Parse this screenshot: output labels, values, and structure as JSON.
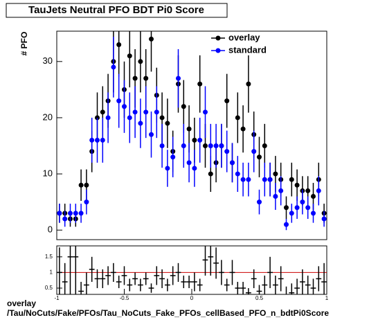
{
  "chart_data": [
    {
      "type": "scatter",
      "title": "TauJets Neutral PFO BDT Pi0 Score",
      "ylabel": "# PFO",
      "x": [
        -0.98,
        -0.94,
        -0.9,
        -0.86,
        -0.82,
        -0.78,
        -0.74,
        -0.7,
        -0.66,
        -0.62,
        -0.58,
        -0.54,
        -0.5,
        -0.46,
        -0.42,
        -0.38,
        -0.34,
        -0.3,
        -0.26,
        -0.22,
        -0.18,
        -0.14,
        -0.1,
        -0.06,
        -0.02,
        0.02,
        0.06,
        0.1,
        0.14,
        0.18,
        0.22,
        0.26,
        0.3,
        0.34,
        0.38,
        0.42,
        0.46,
        0.5,
        0.54,
        0.58,
        0.62,
        0.66,
        0.7,
        0.74,
        0.78,
        0.82,
        0.86,
        0.9,
        0.94,
        0.98
      ],
      "series": [
        {
          "name": "overlay",
          "color": "#000000",
          "values": [
            3,
            3,
            2,
            2,
            8,
            8,
            14,
            20,
            21,
            23,
            30,
            33,
            25,
            31,
            27,
            30,
            27,
            34,
            24,
            20,
            19,
            14,
            26,
            22,
            18,
            16,
            26,
            15,
            10,
            12,
            15,
            23,
            12,
            20,
            18,
            26,
            17,
            13,
            15,
            9,
            10,
            9,
            4,
            9,
            8,
            7,
            7,
            6,
            9,
            3
          ],
          "errors": [
            1.7,
            1.7,
            1.4,
            1.4,
            2.8,
            2.8,
            3.7,
            4.5,
            4.6,
            4.8,
            5.5,
            5.7,
            5,
            5.6,
            5.2,
            5.5,
            5.2,
            5.8,
            4.9,
            4.5,
            4.4,
            3.7,
            5.1,
            4.7,
            4.2,
            4,
            5.1,
            3.9,
            3.2,
            3.5,
            3.9,
            4.8,
            3.5,
            4.5,
            4.2,
            5.1,
            4.1,
            3.6,
            3.9,
            3,
            3.2,
            3,
            2,
            3,
            2.8,
            2.6,
            2.6,
            2.4,
            3,
            1.7
          ]
        },
        {
          "name": "standard",
          "color": "#0000ff",
          "values": [
            3,
            2,
            3,
            3,
            3,
            5,
            16,
            16,
            16,
            20,
            29,
            23,
            22,
            20,
            21,
            19,
            21,
            17,
            21,
            15,
            11,
            13,
            27,
            15,
            12,
            11,
            16,
            21,
            15,
            15,
            15,
            14,
            12,
            10,
            9,
            9,
            14,
            5,
            9,
            9,
            6,
            7,
            1,
            3,
            4,
            5,
            4,
            3,
            7,
            2
          ],
          "errors": [
            1.7,
            1.4,
            1.7,
            1.7,
            1.7,
            2.2,
            4,
            4,
            4,
            4.5,
            5.4,
            4.8,
            4.7,
            4.5,
            4.6,
            4.4,
            4.6,
            4.1,
            4.6,
            3.9,
            3.3,
            3.6,
            5.2,
            3.9,
            3.5,
            3.3,
            4,
            4.6,
            3.9,
            3.9,
            3.9,
            3.7,
            3.5,
            3.2,
            3,
            3,
            3.7,
            2.2,
            3,
            3,
            2.4,
            2.6,
            1,
            1.7,
            2,
            2.2,
            2,
            1.7,
            2.6,
            1.4
          ]
        }
      ],
      "xlim": [
        -1,
        1
      ],
      "ylim": [
        -1.7,
        35.4
      ],
      "yticks": [
        0,
        10,
        20,
        30
      ],
      "legend": "upper right"
    },
    {
      "type": "ratio",
      "x": [
        -0.98,
        -0.94,
        -0.9,
        -0.86,
        -0.82,
        -0.78,
        -0.74,
        -0.7,
        -0.66,
        -0.62,
        -0.58,
        -0.54,
        -0.5,
        -0.46,
        -0.42,
        -0.38,
        -0.34,
        -0.3,
        -0.26,
        -0.22,
        -0.18,
        -0.14,
        -0.1,
        -0.06,
        -0.02,
        0.02,
        0.06,
        0.1,
        0.14,
        0.18,
        0.22,
        0.26,
        0.3,
        0.34,
        0.38,
        0.42,
        0.46,
        0.5,
        0.54,
        0.58,
        0.62,
        0.66,
        0.7,
        0.74,
        0.78,
        0.82,
        0.86,
        0.9,
        0.94,
        0.98
      ],
      "values": [
        1,
        0.7,
        1.5,
        1.5,
        0.4,
        0.6,
        1.1,
        0.8,
        0.8,
        0.9,
        1,
        0.7,
        0.9,
        0.6,
        0.8,
        0.6,
        0.8,
        0.5,
        0.9,
        0.8,
        0.6,
        0.9,
        1,
        0.7,
        0.7,
        0.7,
        0.6,
        1.4,
        1.5,
        1.3,
        1,
        0.6,
        1,
        0.5,
        0.5,
        0.35,
        0.8,
        0.4,
        0.6,
        1,
        0.6,
        0.8,
        0.25,
        0.35,
        0.5,
        0.7,
        0.6,
        0.5,
        0.8,
        0.7
      ],
      "errors": [
        0.8,
        0.6,
        1.2,
        1.2,
        0.3,
        0.4,
        0.4,
        0.3,
        0.3,
        0.3,
        0.3,
        0.2,
        0.3,
        0.2,
        0.2,
        0.2,
        0.2,
        0.15,
        0.3,
        0.3,
        0.2,
        0.3,
        0.3,
        0.2,
        0.2,
        0.3,
        0.2,
        0.5,
        0.6,
        0.5,
        0.4,
        0.2,
        0.4,
        0.2,
        0.2,
        0.15,
        0.3,
        0.2,
        0.3,
        0.5,
        0.3,
        0.4,
        0.3,
        0.3,
        0.3,
        0.4,
        0.3,
        0.3,
        0.4,
        0.6
      ],
      "color": "#000000",
      "reference": 1,
      "reference_color": "#cc0000",
      "xlim": [
        -1,
        1
      ],
      "ylim": [
        0.3,
        1.85
      ],
      "yticks": [
        0.5,
        1,
        1.5
      ],
      "xticks": [
        -1,
        -0.5,
        0,
        0.5,
        1
      ]
    }
  ],
  "footer": {
    "line1": "overlay",
    "line2": "/Tau/NoCuts/Fake/PFOs/Tau_NoCuts_Fake_PFOs_cellBased_PFO_n_bdtPi0Score"
  }
}
